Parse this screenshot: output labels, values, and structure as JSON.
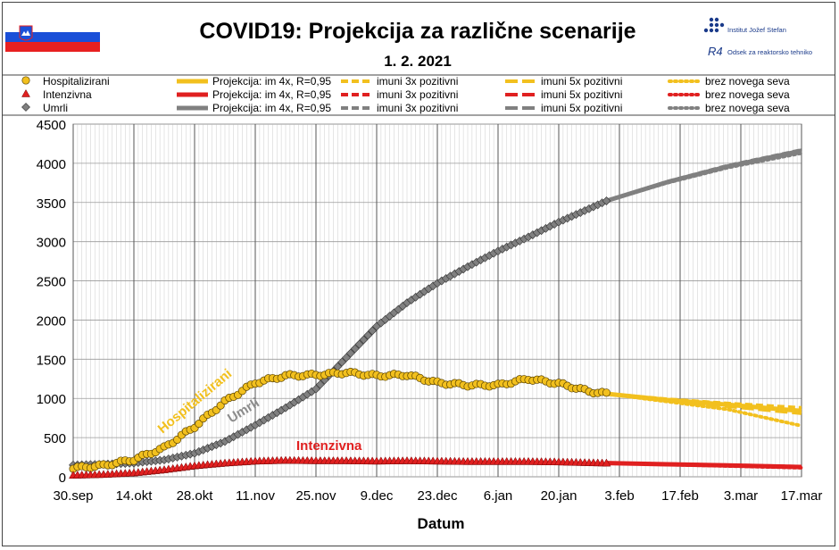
{
  "header": {
    "title": "COVID19: Projekcija za različne scenarije",
    "date": "1. 2. 2021",
    "institute_line1": "Institut Jožef Stefan",
    "institute_line2": "Odsek za reaktorsko tehniko",
    "r4_logo_text": "R4"
  },
  "legend": {
    "rows": [
      {
        "label": "Hospitalizirani",
        "marker": "circle",
        "color": "#f2c01e",
        "entries": [
          "Projekcija: im 4x, R=0,95",
          "imuni 3x pozitivni",
          "imuni 5x pozitivni",
          "brez novega seva"
        ]
      },
      {
        "label": "Intenzivna",
        "marker": "triangle",
        "color": "#e02020",
        "entries": [
          "Projekcija: im 4x, R=0,95",
          "imuni 3x pozitivni",
          "imuni 5x pozitivni",
          "brez novega seva"
        ]
      },
      {
        "label": "Umrli",
        "marker": "diamond",
        "color": "#808080",
        "entries": [
          "Projekcija: im 4x, R=0,95",
          "imuni 3x pozitivni",
          "imuni 5x pozitivni",
          "brez novega seva"
        ]
      }
    ]
  },
  "annotations": {
    "hospitalizirani": "Hospitalizirani",
    "umrli": "Umrli",
    "intenzivna": "Intenzivna"
  },
  "chart_data": {
    "type": "line",
    "xlabel": "Datum",
    "ylabel": "",
    "ylim": [
      0,
      4500
    ],
    "yticks": [
      0,
      500,
      1000,
      1500,
      2000,
      2500,
      3000,
      3500,
      4000,
      4500
    ],
    "xticks": [
      "30.sep",
      "14.okt",
      "28.okt",
      "11.nov",
      "25.nov",
      "9.dec",
      "23.dec",
      "6.jan",
      "20.jan",
      "3.feb",
      "17.feb",
      "3.mar",
      "17.mar"
    ],
    "x_range": [
      "2020-09-30",
      "2021-03-17"
    ],
    "grid": true,
    "colors": {
      "hosp": "#f2c01e",
      "icu": "#e02020",
      "deaths": "#808080"
    },
    "series": [
      {
        "name": "Hospitalizirani",
        "kind": "observed",
        "marker": "circle",
        "points": [
          [
            "2020-09-30",
            110
          ],
          [
            "2020-10-07",
            145
          ],
          [
            "2020-10-14",
            220
          ],
          [
            "2020-10-21",
            370
          ],
          [
            "2020-10-28",
            640
          ],
          [
            "2020-11-04",
            960
          ],
          [
            "2020-11-11",
            1200
          ],
          [
            "2020-11-18",
            1290
          ],
          [
            "2020-11-25",
            1300
          ],
          [
            "2020-12-02",
            1330
          ],
          [
            "2020-12-09",
            1290
          ],
          [
            "2020-12-16",
            1300
          ],
          [
            "2020-12-23",
            1200
          ],
          [
            "2020-12-30",
            1170
          ],
          [
            "2021-01-06",
            1170
          ],
          [
            "2021-01-13",
            1250
          ],
          [
            "2021-01-20",
            1190
          ],
          [
            "2021-01-27",
            1090
          ],
          [
            "2021-01-31",
            1060
          ]
        ]
      },
      {
        "name": "Intenzivna",
        "kind": "observed",
        "marker": "triangle",
        "points": [
          [
            "2020-09-30",
            20
          ],
          [
            "2020-10-07",
            30
          ],
          [
            "2020-10-14",
            50
          ],
          [
            "2020-10-21",
            90
          ],
          [
            "2020-10-28",
            140
          ],
          [
            "2020-11-04",
            175
          ],
          [
            "2020-11-11",
            200
          ],
          [
            "2020-11-18",
            210
          ],
          [
            "2020-11-25",
            205
          ],
          [
            "2020-12-02",
            205
          ],
          [
            "2020-12-09",
            200
          ],
          [
            "2020-12-16",
            205
          ],
          [
            "2020-12-23",
            200
          ],
          [
            "2020-12-30",
            195
          ],
          [
            "2021-01-06",
            195
          ],
          [
            "2021-01-13",
            195
          ],
          [
            "2021-01-20",
            190
          ],
          [
            "2021-01-27",
            180
          ],
          [
            "2021-01-31",
            175
          ]
        ]
      },
      {
        "name": "Umrli",
        "kind": "observed",
        "marker": "diamond",
        "points": [
          [
            "2020-09-30",
            150
          ],
          [
            "2020-10-07",
            160
          ],
          [
            "2020-10-14",
            175
          ],
          [
            "2020-10-21",
            215
          ],
          [
            "2020-10-28",
            300
          ],
          [
            "2020-11-04",
            450
          ],
          [
            "2020-11-11",
            660
          ],
          [
            "2020-11-18",
            880
          ],
          [
            "2020-11-25",
            1120
          ],
          [
            "2020-12-02",
            1520
          ],
          [
            "2020-12-09",
            1920
          ],
          [
            "2020-12-16",
            2220
          ],
          [
            "2020-12-23",
            2470
          ],
          [
            "2020-12-30",
            2680
          ],
          [
            "2021-01-06",
            2880
          ],
          [
            "2021-01-13",
            3060
          ],
          [
            "2021-01-20",
            3250
          ],
          [
            "2021-01-27",
            3420
          ],
          [
            "2021-01-31",
            3520
          ]
        ]
      },
      {
        "name": "Projekcija: im 4x, R=0,95",
        "group": "hosp",
        "kind": "projection",
        "style": "solid",
        "points": [
          [
            "2021-01-31",
            1060
          ],
          [
            "2021-02-14",
            980
          ],
          [
            "2021-02-28",
            920
          ],
          [
            "2021-03-17",
            840
          ]
        ]
      },
      {
        "name": "imuni 3x pozitivni",
        "group": "hosp",
        "kind": "projection",
        "style": "dash",
        "points": [
          [
            "2021-01-31",
            1060
          ],
          [
            "2021-02-14",
            990
          ],
          [
            "2021-02-28",
            935
          ],
          [
            "2021-03-17",
            880
          ]
        ]
      },
      {
        "name": "imuni 5x pozitivni",
        "group": "hosp",
        "kind": "projection",
        "style": "dash-long",
        "points": [
          [
            "2021-01-31",
            1060
          ],
          [
            "2021-02-14",
            970
          ],
          [
            "2021-02-28",
            900
          ],
          [
            "2021-03-17",
            810
          ]
        ]
      },
      {
        "name": "brez novega seva",
        "group": "hosp",
        "kind": "projection",
        "style": "dot",
        "points": [
          [
            "2021-01-31",
            1060
          ],
          [
            "2021-02-14",
            960
          ],
          [
            "2021-02-28",
            860
          ],
          [
            "2021-03-17",
            650
          ]
        ]
      },
      {
        "name": "Projekcija: im 4x, R=0,95",
        "group": "icu",
        "kind": "projection",
        "style": "solid",
        "points": [
          [
            "2021-01-31",
            175
          ],
          [
            "2021-02-14",
            160
          ],
          [
            "2021-02-28",
            145
          ],
          [
            "2021-03-17",
            125
          ]
        ]
      },
      {
        "name": "imuni 3x pozitivni",
        "group": "icu",
        "kind": "projection",
        "style": "dash",
        "points": [
          [
            "2021-01-31",
            175
          ],
          [
            "2021-02-14",
            162
          ],
          [
            "2021-02-28",
            148
          ],
          [
            "2021-03-17",
            130
          ]
        ]
      },
      {
        "name": "imuni 5x pozitivni",
        "group": "icu",
        "kind": "projection",
        "style": "dash-long",
        "points": [
          [
            "2021-01-31",
            175
          ],
          [
            "2021-02-14",
            158
          ],
          [
            "2021-02-28",
            142
          ],
          [
            "2021-03-17",
            120
          ]
        ]
      },
      {
        "name": "brez novega seva",
        "group": "icu",
        "kind": "projection",
        "style": "dot",
        "points": [
          [
            "2021-01-31",
            175
          ],
          [
            "2021-02-14",
            156
          ],
          [
            "2021-02-28",
            138
          ],
          [
            "2021-03-17",
            115
          ]
        ]
      },
      {
        "name": "Projekcija: im 4x, R=0,95",
        "group": "deaths",
        "kind": "projection",
        "style": "solid",
        "points": [
          [
            "2021-01-31",
            3520
          ],
          [
            "2021-02-14",
            3760
          ],
          [
            "2021-02-28",
            3960
          ],
          [
            "2021-03-17",
            4160
          ]
        ]
      },
      {
        "name": "imuni 3x pozitivni",
        "group": "deaths",
        "kind": "projection",
        "style": "dash",
        "points": [
          [
            "2021-01-31",
            3520
          ],
          [
            "2021-02-14",
            3765
          ],
          [
            "2021-02-28",
            3970
          ],
          [
            "2021-03-17",
            4170
          ]
        ]
      },
      {
        "name": "imuni 5x pozitivni",
        "group": "deaths",
        "kind": "projection",
        "style": "dash-long",
        "points": [
          [
            "2021-01-31",
            3520
          ],
          [
            "2021-02-14",
            3755
          ],
          [
            "2021-02-28",
            3955
          ],
          [
            "2021-03-17",
            4150
          ]
        ]
      },
      {
        "name": "brez novega seva",
        "group": "deaths",
        "kind": "projection",
        "style": "dot",
        "points": [
          [
            "2021-01-31",
            3520
          ],
          [
            "2021-02-14",
            3750
          ],
          [
            "2021-02-28",
            3945
          ],
          [
            "2021-03-17",
            4130
          ]
        ]
      }
    ]
  }
}
